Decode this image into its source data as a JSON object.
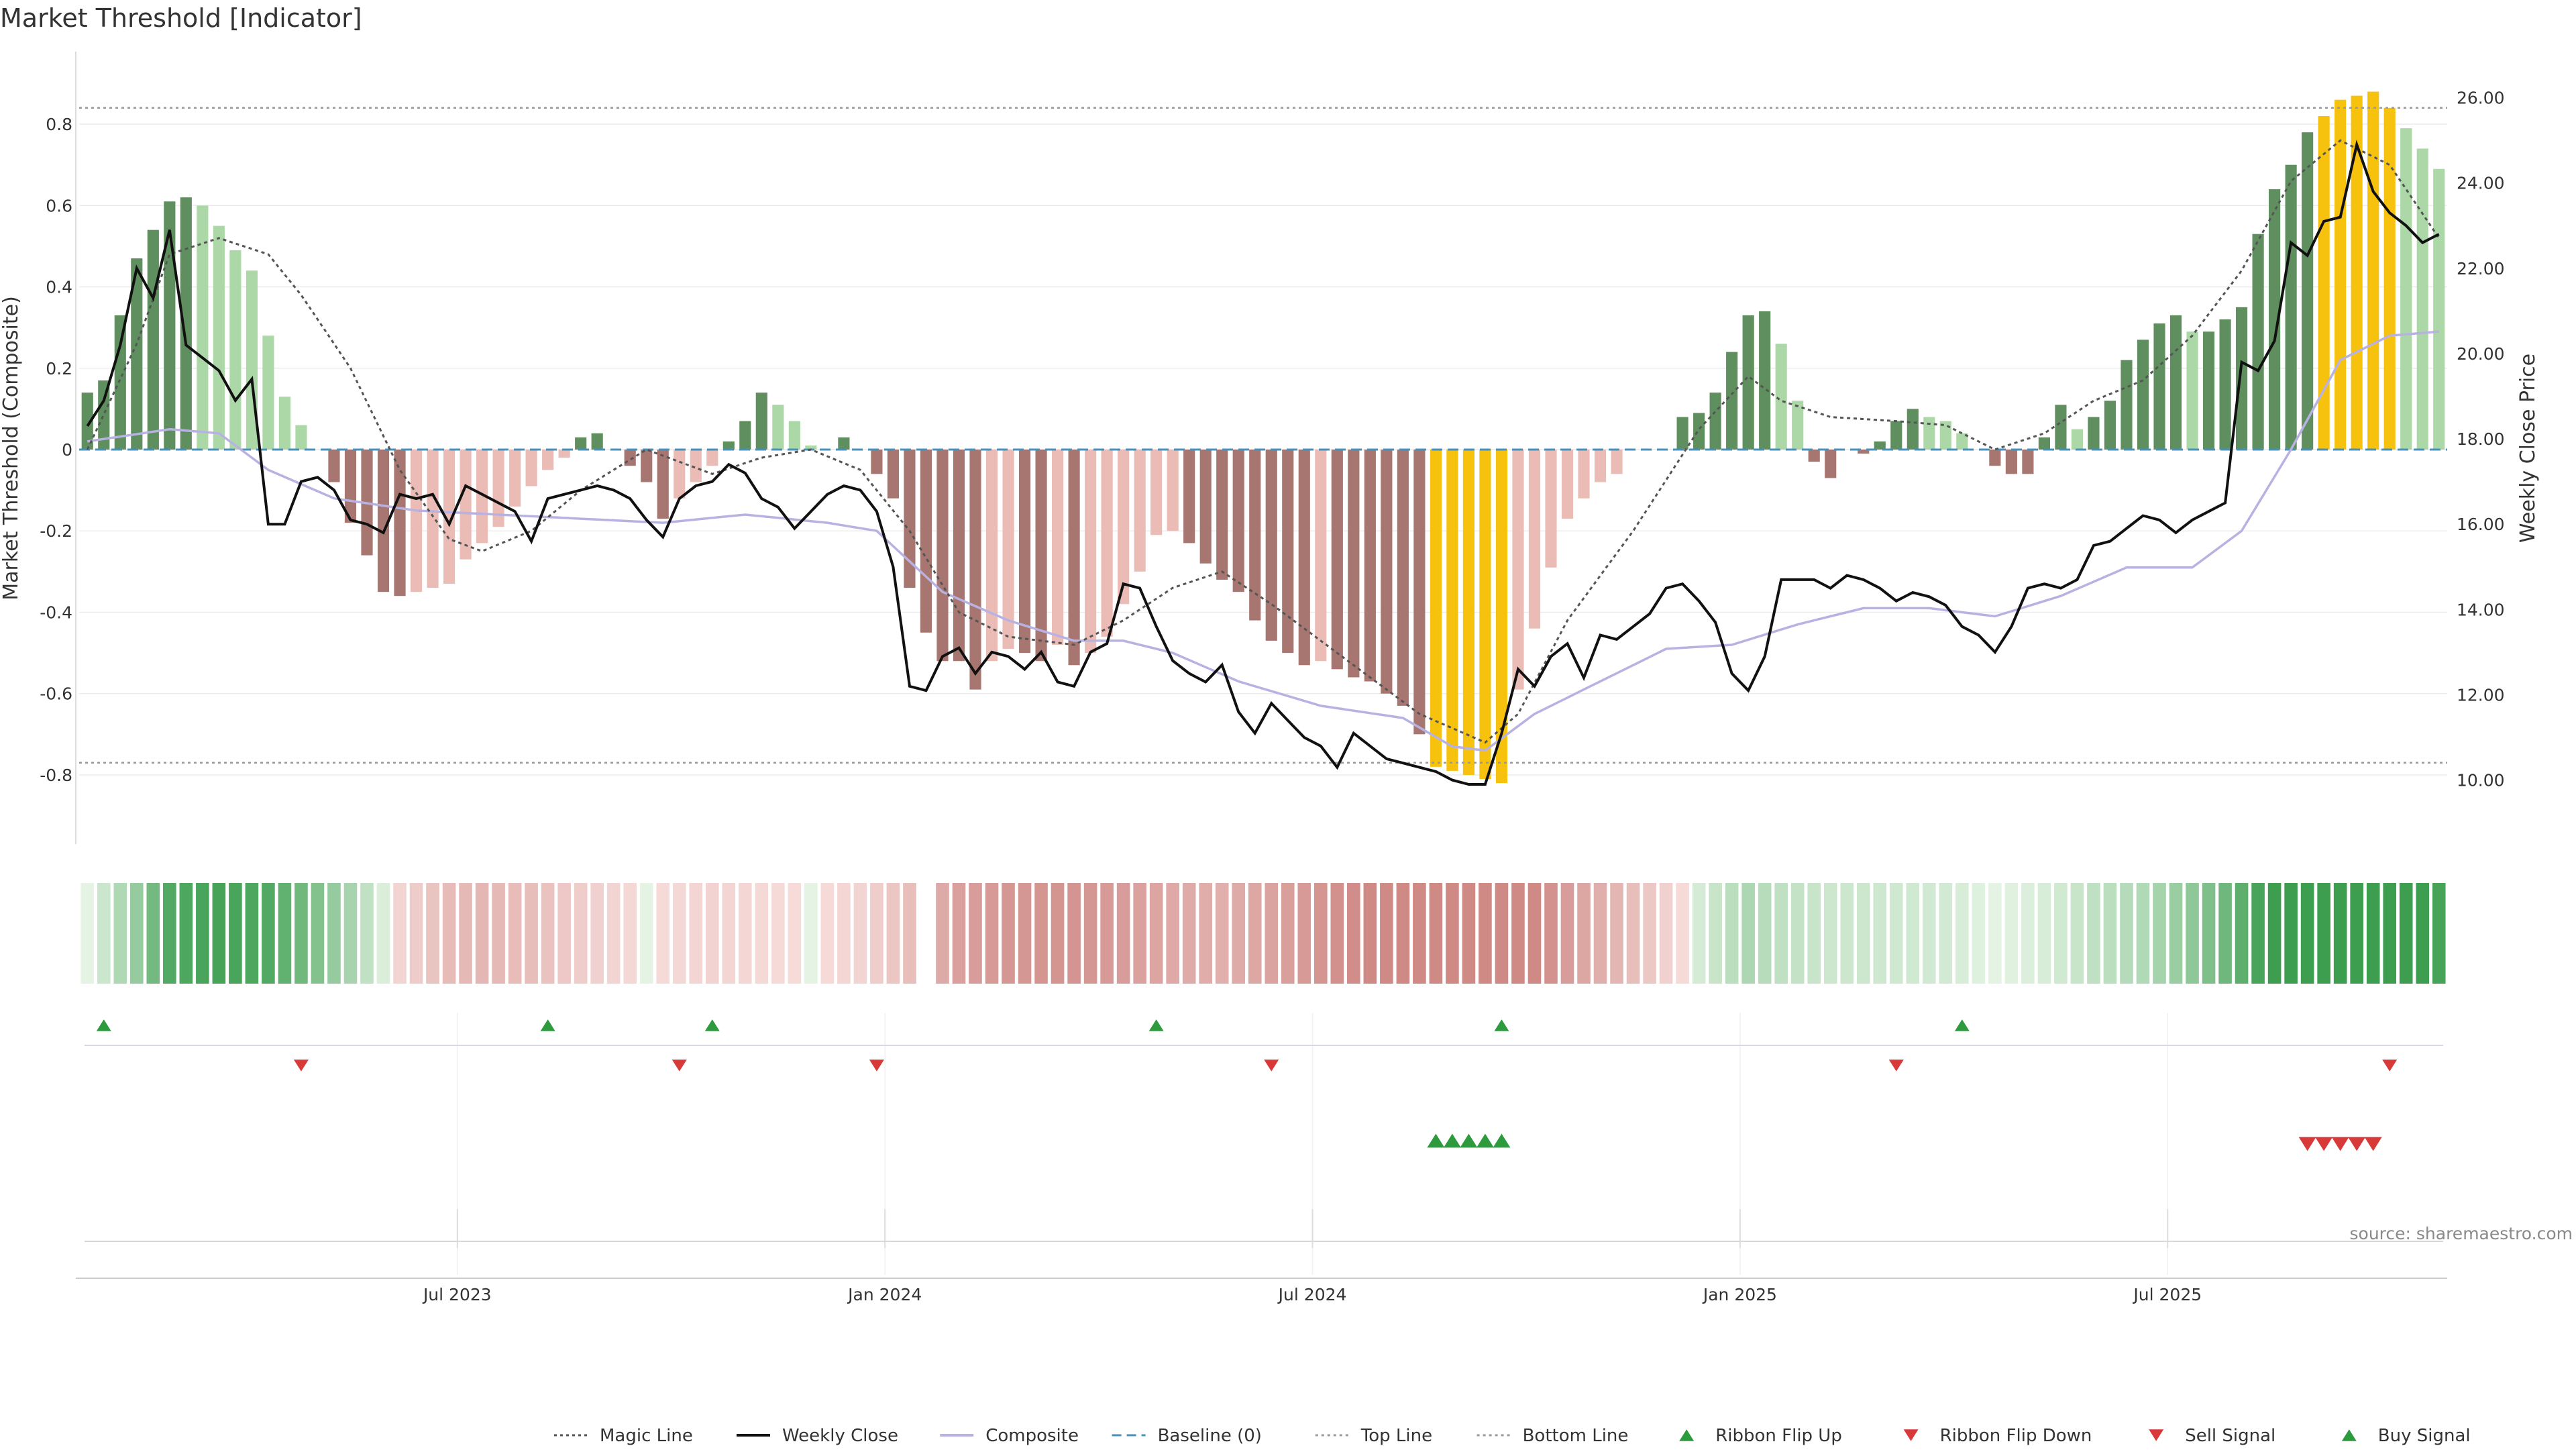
{
  "page_title": "Market Threshold [Indicator]",
  "source_text": "source: sharemaestro.com",
  "colors": {
    "dark_green": "#5f8f5f",
    "light_green": "#acd8a8",
    "dark_red": "#a87670",
    "light_red": "#ebbcb6",
    "gold": "#f7c20e",
    "weekly_close": "#111111",
    "composite": "#b8b2e2",
    "magic": "#555555",
    "baseline": "#4a90b8",
    "buy": "#2e9a3e",
    "sell": "#d83a3a"
  },
  "chart_data": {
    "type": "bar",
    "title": "Market Threshold [Indicator]",
    "ylabel": "Market Threshold (Composite)",
    "y2label": "Weekly Close Price",
    "ylim": [
      -0.97,
      0.97
    ],
    "y2lim": [
      8.5,
      27.0
    ],
    "yticks": [
      "-0.8",
      "-0.6",
      "-0.4",
      "-0.2",
      "0",
      "0.2",
      "0.4",
      "0.6",
      "0.8"
    ],
    "y2ticks": [
      "10.00",
      "12.00",
      "14.00",
      "16.00",
      "18.00",
      "20.00",
      "22.00",
      "24.00",
      "26.00"
    ],
    "xticks": [
      {
        "label": "Jul 2023",
        "week": 23
      },
      {
        "label": "Jan 2024",
        "week": 49
      },
      {
        "label": "Jul 2024",
        "week": 75
      },
      {
        "label": "Jan 2025",
        "week": 101
      },
      {
        "label": "Jul 2025",
        "week": 127
      }
    ],
    "weeks": 144,
    "top_line": 0.84,
    "bottom_line": -0.77,
    "grid": true,
    "legend_position": "bottom-center",
    "bars_keypoints": [
      [
        0,
        0.14
      ],
      [
        1,
        0.17
      ],
      [
        2,
        0.33
      ],
      [
        3,
        0.47
      ],
      [
        4,
        0.54
      ],
      [
        5,
        0.61
      ],
      [
        6,
        0.62
      ],
      [
        7,
        0.6
      ],
      [
        8,
        0.55
      ],
      [
        9,
        0.49
      ],
      [
        10,
        0.44
      ],
      [
        11,
        0.28
      ],
      [
        12,
        0.13
      ],
      [
        13,
        0.06
      ],
      [
        14,
        0.0
      ],
      [
        15,
        -0.08
      ],
      [
        16,
        -0.18
      ],
      [
        17,
        -0.26
      ],
      [
        18,
        -0.35
      ],
      [
        19,
        -0.36
      ],
      [
        20,
        -0.35
      ],
      [
        21,
        -0.34
      ],
      [
        22,
        -0.33
      ],
      [
        23,
        -0.27
      ],
      [
        24,
        -0.23
      ],
      [
        25,
        -0.19
      ],
      [
        26,
        -0.14
      ],
      [
        27,
        -0.09
      ],
      [
        28,
        -0.05
      ],
      [
        29,
        -0.02
      ],
      [
        30,
        0.03
      ],
      [
        31,
        0.04
      ],
      [
        32,
        0.0
      ],
      [
        33,
        -0.04
      ],
      [
        34,
        -0.08
      ],
      [
        35,
        -0.17
      ],
      [
        36,
        -0.12
      ],
      [
        37,
        -0.08
      ],
      [
        38,
        -0.04
      ],
      [
        39,
        0.02
      ],
      [
        40,
        0.07
      ],
      [
        41,
        0.14
      ],
      [
        42,
        0.11
      ],
      [
        43,
        0.07
      ],
      [
        44,
        0.01
      ],
      [
        45,
        0.0
      ],
      [
        46,
        0.03
      ],
      [
        47,
        0.0
      ],
      [
        48,
        -0.06
      ],
      [
        49,
        -0.12
      ],
      [
        50,
        -0.34
      ],
      [
        51,
        -0.45
      ],
      [
        52,
        -0.52
      ],
      [
        53,
        -0.52
      ],
      [
        54,
        -0.59
      ],
      [
        55,
        -0.52
      ],
      [
        56,
        -0.49
      ],
      [
        57,
        -0.5
      ],
      [
        58,
        -0.52
      ],
      [
        59,
        -0.48
      ],
      [
        60,
        -0.53
      ],
      [
        61,
        -0.5
      ],
      [
        62,
        -0.46
      ],
      [
        63,
        -0.38
      ],
      [
        64,
        -0.3
      ],
      [
        65,
        -0.21
      ],
      [
        66,
        -0.2
      ],
      [
        67,
        -0.23
      ],
      [
        68,
        -0.28
      ],
      [
        69,
        -0.32
      ],
      [
        70,
        -0.35
      ],
      [
        71,
        -0.42
      ],
      [
        72,
        -0.47
      ],
      [
        73,
        -0.5
      ],
      [
        74,
        -0.53
      ],
      [
        75,
        -0.52
      ],
      [
        76,
        -0.54
      ],
      [
        77,
        -0.56
      ],
      [
        78,
        -0.57
      ],
      [
        79,
        -0.6
      ],
      [
        80,
        -0.63
      ],
      [
        81,
        -0.7
      ],
      [
        82,
        -0.78
      ],
      [
        83,
        -0.79
      ],
      [
        84,
        -0.8
      ],
      [
        85,
        -0.81
      ],
      [
        86,
        -0.82
      ],
      [
        87,
        -0.59
      ],
      [
        88,
        -0.44
      ],
      [
        89,
        -0.29
      ],
      [
        90,
        -0.17
      ],
      [
        91,
        -0.12
      ],
      [
        92,
        -0.08
      ],
      [
        93,
        -0.06
      ],
      [
        94,
        0.0
      ],
      [
        95,
        0.0
      ],
      [
        96,
        0.0
      ],
      [
        97,
        0.08
      ],
      [
        98,
        0.09
      ],
      [
        99,
        0.14
      ],
      [
        100,
        0.24
      ],
      [
        101,
        0.33
      ],
      [
        102,
        0.34
      ],
      [
        103,
        0.26
      ],
      [
        104,
        0.12
      ],
      [
        105,
        -0.03
      ],
      [
        106,
        -0.07
      ],
      [
        107,
        0.0
      ],
      [
        108,
        -0.01
      ],
      [
        109,
        0.02
      ],
      [
        110,
        0.07
      ],
      [
        111,
        0.1
      ],
      [
        112,
        0.08
      ],
      [
        113,
        0.07
      ],
      [
        114,
        0.04
      ],
      [
        115,
        0.0
      ],
      [
        116,
        -0.04
      ],
      [
        117,
        -0.06
      ],
      [
        118,
        -0.06
      ],
      [
        119,
        0.03
      ],
      [
        120,
        0.11
      ],
      [
        121,
        0.05
      ],
      [
        122,
        0.08
      ],
      [
        123,
        0.12
      ],
      [
        124,
        0.22
      ],
      [
        125,
        0.27
      ],
      [
        126,
        0.31
      ],
      [
        127,
        0.33
      ],
      [
        128,
        0.29
      ],
      [
        129,
        0.29
      ],
      [
        130,
        0.32
      ],
      [
        131,
        0.35
      ],
      [
        132,
        0.53
      ],
      [
        133,
        0.64
      ],
      [
        134,
        0.7
      ],
      [
        135,
        0.78
      ],
      [
        136,
        0.82
      ],
      [
        137,
        0.86
      ],
      [
        138,
        0.87
      ],
      [
        139,
        0.88
      ],
      [
        140,
        0.84
      ],
      [
        141,
        0.79
      ],
      [
        142,
        0.74
      ],
      [
        143,
        0.69
      ]
    ],
    "close_keypoints": [
      [
        0,
        18.3
      ],
      [
        1,
        18.9
      ],
      [
        2,
        20.2
      ],
      [
        3,
        22.0
      ],
      [
        4,
        21.3
      ],
      [
        5,
        22.9
      ],
      [
        6,
        20.2
      ],
      [
        7,
        19.9
      ],
      [
        8,
        19.6
      ],
      [
        9,
        18.9
      ],
      [
        10,
        19.4
      ],
      [
        11,
        16.0
      ],
      [
        12,
        16.0
      ],
      [
        13,
        17.0
      ],
      [
        14,
        17.1
      ],
      [
        15,
        16.8
      ],
      [
        16,
        16.1
      ],
      [
        17,
        16.0
      ],
      [
        18,
        15.8
      ],
      [
        19,
        16.7
      ],
      [
        20,
        16.6
      ],
      [
        21,
        16.7
      ],
      [
        22,
        16.0
      ],
      [
        23,
        16.9
      ],
      [
        24,
        16.7
      ],
      [
        25,
        16.5
      ],
      [
        26,
        16.3
      ],
      [
        27,
        15.6
      ],
      [
        28,
        16.6
      ],
      [
        29,
        16.7
      ],
      [
        30,
        16.8
      ],
      [
        31,
        16.9
      ],
      [
        32,
        16.8
      ],
      [
        33,
        16.6
      ],
      [
        34,
        16.1
      ],
      [
        35,
        15.7
      ],
      [
        36,
        16.6
      ],
      [
        37,
        16.9
      ],
      [
        38,
        17.0
      ],
      [
        39,
        17.4
      ],
      [
        40,
        17.2
      ],
      [
        41,
        16.6
      ],
      [
        42,
        16.4
      ],
      [
        43,
        15.9
      ],
      [
        44,
        16.3
      ],
      [
        45,
        16.7
      ],
      [
        46,
        16.9
      ],
      [
        47,
        16.8
      ],
      [
        48,
        16.3
      ],
      [
        49,
        15.0
      ],
      [
        50,
        12.2
      ],
      [
        51,
        12.1
      ],
      [
        52,
        12.9
      ],
      [
        53,
        13.1
      ],
      [
        54,
        12.5
      ],
      [
        55,
        13.0
      ],
      [
        56,
        12.9
      ],
      [
        57,
        12.6
      ],
      [
        58,
        13.0
      ],
      [
        59,
        12.3
      ],
      [
        60,
        12.2
      ],
      [
        61,
        13.0
      ],
      [
        62,
        13.2
      ],
      [
        63,
        14.6
      ],
      [
        64,
        14.5
      ],
      [
        65,
        13.6
      ],
      [
        66,
        12.8
      ],
      [
        67,
        12.5
      ],
      [
        68,
        12.3
      ],
      [
        69,
        12.7
      ],
      [
        70,
        11.6
      ],
      [
        71,
        11.1
      ],
      [
        72,
        11.8
      ],
      [
        73,
        11.4
      ],
      [
        74,
        11.0
      ],
      [
        75,
        10.8
      ],
      [
        76,
        10.3
      ],
      [
        77,
        11.1
      ],
      [
        78,
        10.8
      ],
      [
        79,
        10.5
      ],
      [
        80,
        10.4
      ],
      [
        81,
        10.3
      ],
      [
        82,
        10.2
      ],
      [
        83,
        10.0
      ],
      [
        84,
        9.9
      ],
      [
        85,
        9.9
      ],
      [
        86,
        11.1
      ],
      [
        87,
        12.6
      ],
      [
        88,
        12.2
      ],
      [
        89,
        12.9
      ],
      [
        90,
        13.2
      ],
      [
        91,
        12.4
      ],
      [
        92,
        13.4
      ],
      [
        93,
        13.3
      ],
      [
        94,
        13.6
      ],
      [
        95,
        13.9
      ],
      [
        96,
        14.5
      ],
      [
        97,
        14.6
      ],
      [
        98,
        14.2
      ],
      [
        99,
        13.7
      ],
      [
        100,
        12.5
      ],
      [
        101,
        12.1
      ],
      [
        102,
        12.9
      ],
      [
        103,
        14.7
      ],
      [
        104,
        14.7
      ],
      [
        105,
        14.7
      ],
      [
        106,
        14.5
      ],
      [
        107,
        14.8
      ],
      [
        108,
        14.7
      ],
      [
        109,
        14.5
      ],
      [
        110,
        14.2
      ],
      [
        111,
        14.4
      ],
      [
        112,
        14.3
      ],
      [
        113,
        14.1
      ],
      [
        114,
        13.6
      ],
      [
        115,
        13.4
      ],
      [
        116,
        13.0
      ],
      [
        117,
        13.6
      ],
      [
        118,
        14.5
      ],
      [
        119,
        14.6
      ],
      [
        120,
        14.5
      ],
      [
        121,
        14.7
      ],
      [
        122,
        15.5
      ],
      [
        123,
        15.6
      ],
      [
        124,
        15.9
      ],
      [
        125,
        16.2
      ],
      [
        126,
        16.1
      ],
      [
        127,
        15.8
      ],
      [
        128,
        16.1
      ],
      [
        129,
        16.3
      ],
      [
        130,
        16.5
      ],
      [
        131,
        19.8
      ],
      [
        132,
        19.6
      ],
      [
        133,
        20.3
      ],
      [
        134,
        22.6
      ],
      [
        135,
        22.3
      ],
      [
        136,
        23.1
      ],
      [
        137,
        23.2
      ],
      [
        138,
        24.9
      ],
      [
        139,
        23.8
      ],
      [
        140,
        23.3
      ],
      [
        141,
        23.0
      ],
      [
        142,
        22.6
      ],
      [
        143,
        22.8
      ]
    ],
    "composite_keypoints": [
      [
        0,
        0.02
      ],
      [
        5,
        0.05
      ],
      [
        8,
        0.04
      ],
      [
        11,
        -0.05
      ],
      [
        15,
        -0.12
      ],
      [
        20,
        -0.15
      ],
      [
        25,
        -0.16
      ],
      [
        30,
        -0.17
      ],
      [
        35,
        -0.18
      ],
      [
        40,
        -0.16
      ],
      [
        45,
        -0.18
      ],
      [
        48,
        -0.2
      ],
      [
        52,
        -0.35
      ],
      [
        56,
        -0.42
      ],
      [
        60,
        -0.47
      ],
      [
        63,
        -0.47
      ],
      [
        66,
        -0.5
      ],
      [
        70,
        -0.57
      ],
      [
        75,
        -0.63
      ],
      [
        80,
        -0.66
      ],
      [
        83,
        -0.73
      ],
      [
        85,
        -0.74
      ],
      [
        88,
        -0.65
      ],
      [
        92,
        -0.57
      ],
      [
        96,
        -0.49
      ],
      [
        100,
        -0.48
      ],
      [
        104,
        -0.43
      ],
      [
        108,
        -0.39
      ],
      [
        112,
        -0.39
      ],
      [
        116,
        -0.41
      ],
      [
        120,
        -0.36
      ],
      [
        124,
        -0.29
      ],
      [
        128,
        -0.29
      ],
      [
        131,
        -0.2
      ],
      [
        134,
        0.0
      ],
      [
        137,
        0.22
      ],
      [
        140,
        0.28
      ],
      [
        143,
        0.29
      ]
    ],
    "magic_keypoints": [
      [
        0,
        0.0
      ],
      [
        3,
        0.26
      ],
      [
        5,
        0.48
      ],
      [
        8,
        0.52
      ],
      [
        11,
        0.48
      ],
      [
        13,
        0.38
      ],
      [
        16,
        0.2
      ],
      [
        19,
        -0.05
      ],
      [
        22,
        -0.22
      ],
      [
        24,
        -0.25
      ],
      [
        27,
        -0.2
      ],
      [
        30,
        -0.1
      ],
      [
        34,
        0.0
      ],
      [
        38,
        -0.06
      ],
      [
        41,
        -0.02
      ],
      [
        44,
        0.0
      ],
      [
        47,
        -0.05
      ],
      [
        50,
        -0.2
      ],
      [
        53,
        -0.4
      ],
      [
        56,
        -0.46
      ],
      [
        60,
        -0.48
      ],
      [
        63,
        -0.42
      ],
      [
        66,
        -0.34
      ],
      [
        69,
        -0.3
      ],
      [
        72,
        -0.38
      ],
      [
        77,
        -0.53
      ],
      [
        81,
        -0.65
      ],
      [
        85,
        -0.72
      ],
      [
        87,
        -0.65
      ],
      [
        90,
        -0.42
      ],
      [
        94,
        -0.2
      ],
      [
        98,
        0.05
      ],
      [
        101,
        0.18
      ],
      [
        103,
        0.12
      ],
      [
        106,
        0.08
      ],
      [
        110,
        0.07
      ],
      [
        113,
        0.06
      ],
      [
        116,
        0.0
      ],
      [
        119,
        0.04
      ],
      [
        122,
        0.12
      ],
      [
        125,
        0.17
      ],
      [
        128,
        0.28
      ],
      [
        131,
        0.44
      ],
      [
        134,
        0.66
      ],
      [
        137,
        0.76
      ],
      [
        140,
        0.7
      ],
      [
        143,
        0.52
      ]
    ],
    "gold_weeks": [
      82,
      83,
      84,
      85,
      86,
      136,
      137,
      138,
      139,
      140
    ],
    "ribbon_flip_up_weeks": [
      1,
      28,
      38,
      65,
      86,
      114
    ],
    "ribbon_flip_down_weeks": [
      13,
      36,
      48,
      72,
      110,
      140
    ],
    "buy_signal_weeks": [
      82,
      83,
      84,
      85,
      86
    ],
    "sell_signal_weeks": [
      135,
      136,
      137,
      138,
      139
    ],
    "legend": [
      {
        "label": "Magic Line",
        "type": "dotted",
        "color": "#555555"
      },
      {
        "label": "Weekly Close",
        "type": "solid",
        "color": "#111111"
      },
      {
        "label": "Composite",
        "type": "solid",
        "color": "#b8b2e2"
      },
      {
        "label": "Baseline (0)",
        "type": "dashed",
        "color": "#4a90b8"
      },
      {
        "label": "Top Line",
        "type": "dotted",
        "color": "#999999"
      },
      {
        "label": "Bottom Line",
        "type": "dotted",
        "color": "#999999"
      },
      {
        "label": "Ribbon Flip Up",
        "type": "marker-up",
        "color": "#2e9a3e"
      },
      {
        "label": "Ribbon Flip Down",
        "type": "marker-down",
        "color": "#d83a3a"
      },
      {
        "label": "Sell Signal",
        "type": "marker-down",
        "color": "#d83a3a"
      },
      {
        "label": "Buy Signal",
        "type": "marker-up",
        "color": "#2e9a3e"
      }
    ]
  }
}
